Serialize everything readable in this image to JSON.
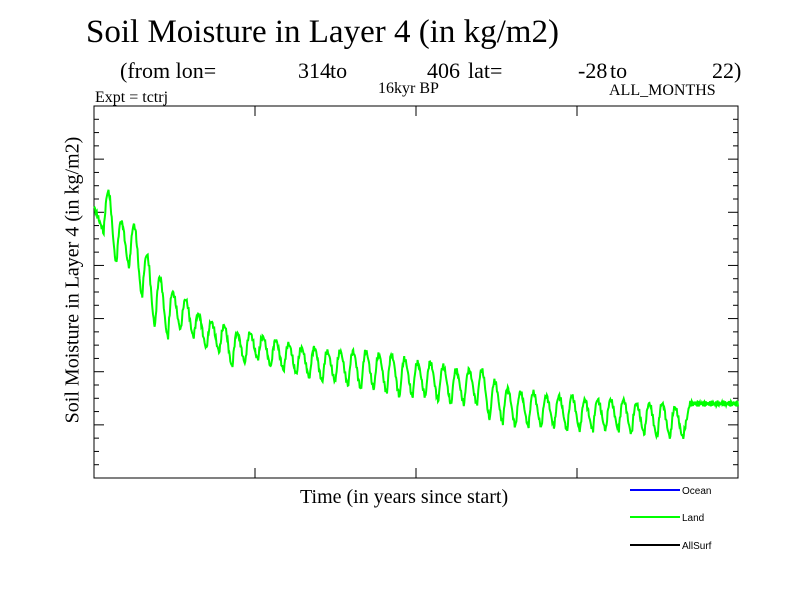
{
  "chart_data": {
    "type": "line",
    "title": "Soil Moisture in Layer 4 (in kg/m2)",
    "subtitle": {
      "from_label": "(from lon=",
      "lon_start": "314",
      "to_label_1": "to",
      "lon_end": "406",
      "lat_label": "lat=",
      "lat_start": "-28",
      "to_label_2": "to",
      "lat_end": "22)"
    },
    "experiment": "Expt = tctrj",
    "period": "16kyr BP",
    "months": "ALL_MONTHS",
    "xlabel": "Time (in years since start)",
    "ylabel": "Soil Moisture in Layer 4 (in kg/m2)",
    "x_tick_labels": [],
    "y_tick_labels": [],
    "xlim": [
      0,
      50
    ],
    "ylim": [
      0,
      100
    ],
    "grid": false,
    "legend_position": "bottom-right",
    "series": [
      {
        "name": "Ocean",
        "color": "#0000ff",
        "values": []
      },
      {
        "name": "Land",
        "color": "#00ff00",
        "cycle_years": 1,
        "annual_peaks": [
          66,
          58,
          57,
          49,
          41,
          38,
          40,
          38,
          35,
          34,
          30,
          31,
          32,
          30,
          29,
          28,
          27,
          26,
          26,
          25,
          24,
          24,
          23,
          22,
          22,
          22,
          21,
          20,
          20,
          20,
          16,
          15,
          14,
          14,
          14,
          14,
          13,
          13,
          13,
          13,
          13,
          12,
          12,
          11,
          11,
          11
        ],
        "annual_troughs": [
          77,
          69,
          68,
          60,
          54,
          50,
          48,
          44,
          42,
          41,
          39,
          39,
          38,
          37,
          36,
          35,
          35,
          34,
          34,
          34,
          34,
          33,
          33,
          32,
          31,
          31,
          30,
          29,
          29,
          29,
          26,
          24,
          23,
          23,
          22,
          22,
          22,
          21,
          21,
          21,
          21,
          20,
          20,
          20,
          19,
          19
        ],
        "start_value": 73,
        "end_value": 20
      },
      {
        "name": "AllSurf",
        "color": "#000000",
        "values": []
      }
    ]
  }
}
